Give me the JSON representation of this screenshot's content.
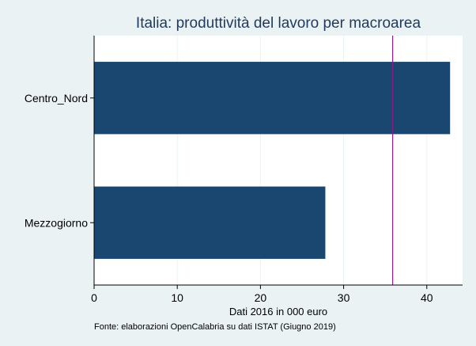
{
  "colors": {
    "background": "#eaf2f3",
    "plot_background": "#ffffff",
    "bar": "#1a476f",
    "reference_line": "#8b1a89",
    "grid": "#eaf2f3",
    "axis": "#000000",
    "title": "#1e3a5f",
    "text": "#000000"
  },
  "chart_data": {
    "type": "bar",
    "orientation": "horizontal",
    "title": "Italia: produttività del lavoro per macroarea",
    "xlabel": "Dati 2016 in 000 euro",
    "ylabel": "",
    "note": "Fonte: elaborazioni OpenCalabria su dati ISTAT (Giugno 2019)",
    "categories": [
      "Centro_Nord",
      "Mezzogiorno"
    ],
    "values": [
      42.8,
      27.8
    ],
    "reference_line": 35.9,
    "xlim": [
      0,
      44.3
    ],
    "xticks": [
      0,
      10,
      20,
      30,
      40
    ],
    "grid": true,
    "legend": false
  }
}
